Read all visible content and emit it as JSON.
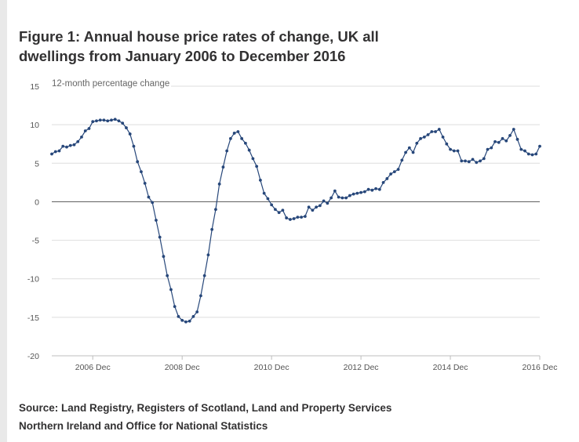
{
  "title": "Figure 1: Annual house price rates of change, UK all dwellings from January 2006 to December 2016",
  "source": "Source: Land Registry, Registers of Scotland, Land and Property Services Northern Ireland and Office for National Statistics",
  "chart_data": {
    "type": "line",
    "ylabel": "12-month percentage change",
    "xlabel": "",
    "ylim": [
      -20,
      15
    ],
    "yticks": [
      15,
      10,
      5,
      0,
      -5,
      -10,
      -15,
      -20
    ],
    "xtick_labels": [
      {
        "label": "2006 Dec",
        "month_index": 11
      },
      {
        "label": "2008 Dec",
        "month_index": 35
      },
      {
        "label": "2010 Dec",
        "month_index": 59
      },
      {
        "label": "2012 Dec",
        "month_index": 83
      },
      {
        "label": "2014 Dec",
        "month_index": 107
      },
      {
        "label": "2016 Dec",
        "month_index": 131
      }
    ],
    "grid": true,
    "legend": "none",
    "x_start": "2006-01",
    "x_end": "2016-12",
    "series": [
      {
        "color": "#27477a",
        "values": [
          6.2,
          6.5,
          6.6,
          7.2,
          7.1,
          7.3,
          7.4,
          7.8,
          8.4,
          9.2,
          9.5,
          10.4,
          10.5,
          10.6,
          10.6,
          10.5,
          10.6,
          10.7,
          10.5,
          10.2,
          9.6,
          8.8,
          7.2,
          5.2,
          3.9,
          2.4,
          0.6,
          -0.1,
          -2.4,
          -4.6,
          -7.1,
          -9.6,
          -11.4,
          -13.6,
          -14.9,
          -15.4,
          -15.6,
          -15.5,
          -14.9,
          -14.3,
          -12.2,
          -9.6,
          -6.9,
          -3.6,
          -1.0,
          2.3,
          4.5,
          6.6,
          8.2,
          8.9,
          9.1,
          8.2,
          7.6,
          6.7,
          5.6,
          4.6,
          2.8,
          1.1,
          0.4,
          -0.4,
          -1.0,
          -1.4,
          -1.1,
          -2.1,
          -2.3,
          -2.2,
          -2.0,
          -2.0,
          -1.9,
          -0.7,
          -1.1,
          -0.7,
          -0.5,
          0.1,
          -0.2,
          0.5,
          1.4,
          0.6,
          0.5,
          0.5,
          0.8,
          1.0,
          1.1,
          1.2,
          1.3,
          1.6,
          1.5,
          1.7,
          1.6,
          2.5,
          3.0,
          3.6,
          3.9,
          4.2,
          5.4,
          6.4,
          7.0,
          6.4,
          7.6,
          8.2,
          8.4,
          8.7,
          9.1,
          9.1,
          9.4,
          8.4,
          7.5,
          6.8,
          6.6,
          6.6,
          5.3,
          5.3,
          5.2,
          5.5,
          5.1,
          5.3,
          5.6,
          6.8,
          7.0,
          7.8,
          7.7,
          8.2,
          7.9,
          8.6,
          9.4,
          8.1,
          6.8,
          6.6,
          6.2,
          6.1,
          6.2,
          7.2
        ]
      }
    ]
  }
}
